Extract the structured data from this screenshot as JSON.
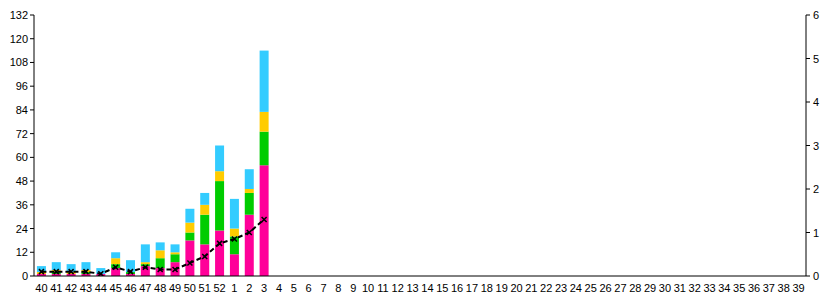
{
  "chart_data": {
    "type": "bar",
    "stacked": true,
    "grid": false,
    "categories": [
      "40",
      "41",
      "42",
      "43",
      "44",
      "45",
      "46",
      "47",
      "48",
      "49",
      "50",
      "51",
      "52",
      "1",
      "2",
      "3",
      "4",
      "5",
      "6",
      "7",
      "8",
      "9",
      "10",
      "11",
      "12",
      "13",
      "14",
      "15",
      "16",
      "17",
      "18",
      "19",
      "20",
      "21",
      "22",
      "23",
      "24",
      "25",
      "26",
      "27",
      "28",
      "29",
      "30",
      "31",
      "32",
      "33",
      "34",
      "35",
      "36",
      "37",
      "38",
      "39"
    ],
    "ylim": [
      0,
      132
    ],
    "yticks": [
      0,
      12,
      24,
      36,
      48,
      60,
      72,
      84,
      96,
      108,
      120,
      132
    ],
    "y2lim": [
      0,
      6
    ],
    "y2ticks": [
      0,
      1,
      2,
      3,
      4,
      5,
      6
    ],
    "series": [
      {
        "type": "bar",
        "color": "#ff0099",
        "values": [
          1,
          1,
          1,
          1,
          1,
          4,
          1,
          5,
          4,
          7,
          18,
          16,
          23,
          11,
          31,
          56,
          null,
          null,
          null,
          null,
          null,
          null,
          null,
          null,
          null,
          null,
          null,
          null,
          null,
          null,
          null,
          null,
          null,
          null,
          null,
          null,
          null,
          null,
          null,
          null,
          null,
          null,
          null,
          null,
          null,
          null,
          null,
          null,
          null,
          null,
          null,
          null
        ]
      },
      {
        "type": "bar",
        "color": "#00cc00",
        "values": [
          0,
          1,
          0,
          1,
          0,
          2,
          1,
          1,
          5,
          4,
          4,
          15,
          25,
          9,
          11,
          17,
          null,
          null,
          null,
          null,
          null,
          null,
          null,
          null,
          null,
          null,
          null,
          null,
          null,
          null,
          null,
          null,
          null,
          null,
          null,
          null,
          null,
          null,
          null,
          null,
          null,
          null,
          null,
          null,
          null,
          null,
          null,
          null,
          null,
          null,
          null,
          null
        ]
      },
      {
        "type": "bar",
        "color": "#ffcc00",
        "values": [
          1,
          1,
          1,
          1,
          0,
          3,
          0,
          1,
          4,
          1,
          5,
          5,
          5,
          4,
          2,
          10,
          null,
          null,
          null,
          null,
          null,
          null,
          null,
          null,
          null,
          null,
          null,
          null,
          null,
          null,
          null,
          null,
          null,
          null,
          null,
          null,
          null,
          null,
          null,
          null,
          null,
          null,
          null,
          null,
          null,
          null,
          null,
          null,
          null,
          null,
          null,
          null
        ]
      },
      {
        "type": "bar",
        "color": "#33ccff",
        "values": [
          3,
          4,
          4,
          4,
          3,
          3,
          6,
          9,
          4,
          4,
          7,
          6,
          13,
          15,
          10,
          31,
          null,
          null,
          null,
          null,
          null,
          null,
          null,
          null,
          null,
          null,
          null,
          null,
          null,
          null,
          null,
          null,
          null,
          null,
          null,
          null,
          null,
          null,
          null,
          null,
          null,
          null,
          null,
          null,
          null,
          null,
          null,
          null,
          null,
          null,
          null,
          null
        ]
      },
      {
        "type": "line",
        "axis": "y2",
        "color": "#000000",
        "line_style": "dashed",
        "marker": "x",
        "values": [
          0.1,
          0.1,
          0.1,
          0.1,
          0.05,
          0.2,
          0.1,
          0.2,
          0.15,
          0.15,
          0.3,
          0.45,
          0.75,
          0.85,
          1.0,
          1.3,
          null,
          null,
          null,
          null,
          null,
          null,
          null,
          null,
          null,
          null,
          null,
          null,
          null,
          null,
          null,
          null,
          null,
          null,
          null,
          null,
          null,
          null,
          null,
          null,
          null,
          null,
          null,
          null,
          null,
          null,
          null,
          null,
          null,
          null,
          null,
          null
        ]
      }
    ]
  }
}
